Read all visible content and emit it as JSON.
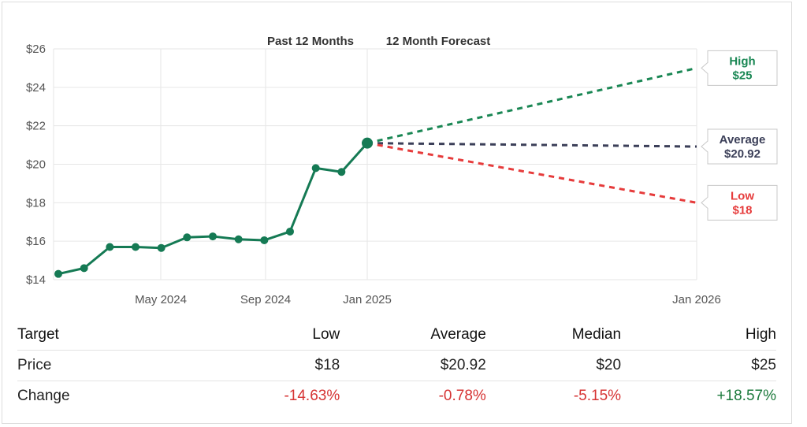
{
  "chart_data": {
    "type": "line",
    "section_labels": [
      "Past 12 Months",
      "12 Month Forecast"
    ],
    "y_ticks": [
      "$14",
      "$16",
      "$18",
      "$20",
      "$22",
      "$24",
      "$26"
    ],
    "ylim": [
      14,
      26
    ],
    "x_ticks": [
      "May 2024",
      "Sep 2024",
      "Jan 2025",
      "Jan 2026"
    ],
    "grid": true,
    "history": {
      "x": [
        "2024-02",
        "2024-03",
        "2024-04",
        "2024-05",
        "2024-06",
        "2024-07",
        "2024-08",
        "2024-09",
        "2024-10",
        "2024-11",
        "2024-12",
        "2025-01",
        "2025-02"
      ],
      "values": [
        14.3,
        14.6,
        15.7,
        15.7,
        15.65,
        16.2,
        16.25,
        16.1,
        16.05,
        16.5,
        19.8,
        19.6,
        21.1
      ]
    },
    "current_price": 21.1,
    "forecast": [
      {
        "name": "High",
        "value": 25,
        "label": "$25",
        "color": "#1a8754"
      },
      {
        "name": "Average",
        "value": 20.92,
        "label": "$20.92",
        "color": "#3b3f58"
      },
      {
        "name": "Low",
        "value": 18,
        "label": "$18",
        "color": "#e63b3b"
      }
    ],
    "forecast_end": "Jan 2026"
  },
  "table": {
    "headers": [
      "Target",
      "Low",
      "Average",
      "Median",
      "High"
    ],
    "price_label": "Price",
    "price": [
      "$18",
      "$20.92",
      "$20",
      "$25"
    ],
    "change_label": "Change",
    "change": [
      "-14.63%",
      "-0.78%",
      "-5.15%",
      "+18.57%"
    ]
  },
  "colors": {
    "line": "#157a54",
    "negative": "#d63333",
    "positive": "#1c7a3c",
    "grid": "#e6e6e6",
    "axis_text": "#555555"
  }
}
